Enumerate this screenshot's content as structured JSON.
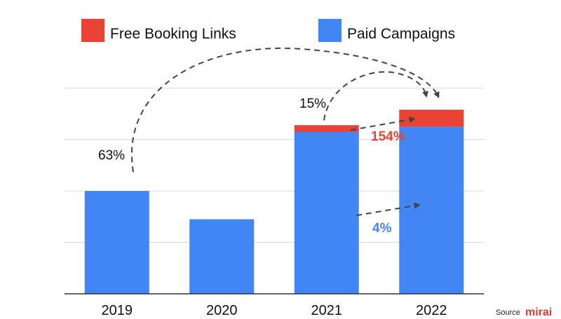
{
  "chart_data": {
    "type": "bar",
    "stacked": true,
    "categories": [
      "2019",
      "2020",
      "2021",
      "2022"
    ],
    "series": [
      {
        "name": "Paid Campaigns",
        "color": "#4285f4",
        "values": [
          4.0,
          2.9,
          6.3,
          6.5
        ]
      },
      {
        "name": "Free Booking Links",
        "color": "#ea4335",
        "values": [
          0,
          0,
          0.26,
          0.66
        ]
      }
    ],
    "ylim": [
      0,
      8
    ],
    "grid": true,
    "y_tick_labels_visible": false,
    "legend": "top",
    "annotations": [
      {
        "text": "63%",
        "color": "#111111"
      },
      {
        "text": "15%",
        "color": "#111111"
      },
      {
        "text": "154%",
        "color": "#ea4335"
      },
      {
        "text": "4%",
        "color": "#4a86e8"
      }
    ],
    "arrow_color": "#444444"
  },
  "footer": {
    "source_label": "Source",
    "brand": "mirai",
    "brand_color": "#e53935"
  }
}
